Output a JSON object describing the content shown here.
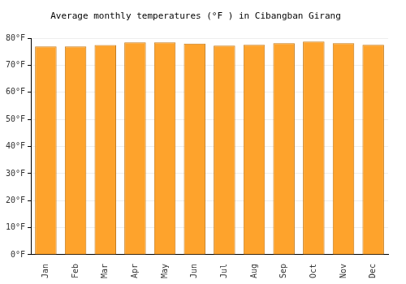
{
  "chart_data": {
    "type": "bar",
    "title": "Average monthly temperatures (°F ) in Cibangban Girang",
    "categories": [
      "Jan",
      "Feb",
      "Mar",
      "Apr",
      "May",
      "Jun",
      "Jul",
      "Aug",
      "Sep",
      "Oct",
      "Nov",
      "Dec"
    ],
    "values": [
      77,
      77,
      77.5,
      78.5,
      78.5,
      78,
      77.3,
      77.6,
      78.2,
      78.8,
      78.2,
      77.6
    ],
    "color": "#fea32c",
    "ylim": [
      0,
      80
    ],
    "yticks": [
      {
        "value": 0,
        "label": "0°F"
      },
      {
        "value": 10,
        "label": "10°F"
      },
      {
        "value": 20,
        "label": "20°F"
      },
      {
        "value": 30,
        "label": "30°F"
      },
      {
        "value": 40,
        "label": "40°F"
      },
      {
        "value": 50,
        "label": "50°F"
      },
      {
        "value": 60,
        "label": "60°F"
      },
      {
        "value": 70,
        "label": "70°F"
      },
      {
        "value": 80,
        "label": "80°F"
      }
    ],
    "grid": true
  }
}
